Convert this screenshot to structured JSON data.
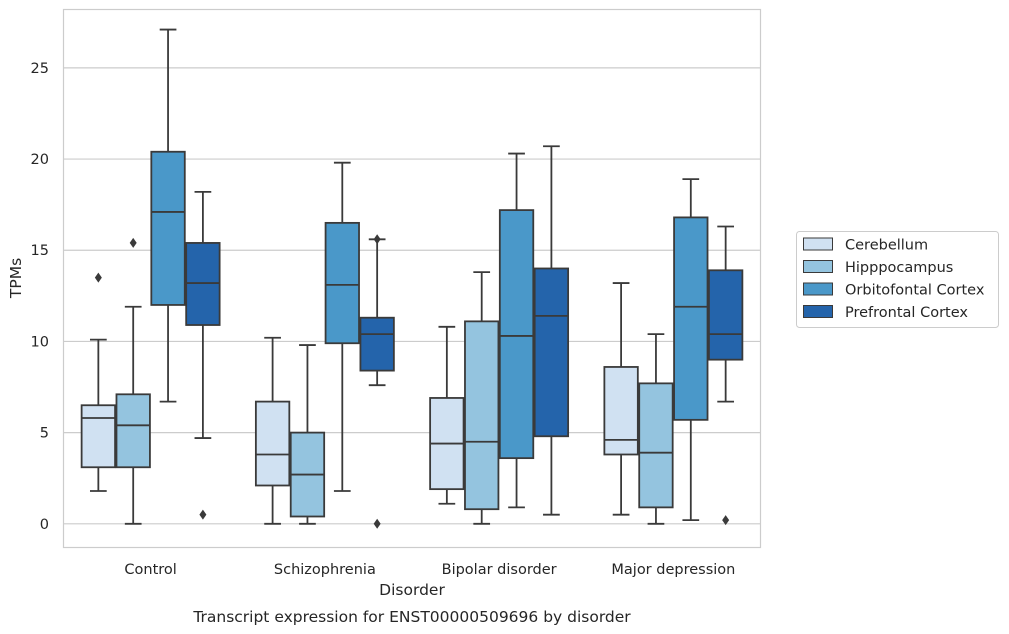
{
  "chart_data": {
    "type": "boxplot",
    "title": "Transcript expression for ENST00000509696 by disorder",
    "xlabel": "Disorder",
    "ylabel": "TPMs",
    "ylim": [
      -1.3,
      28.2
    ],
    "yticks": [
      0,
      5,
      10,
      15,
      20,
      25
    ],
    "grid": "horizontal",
    "legend_position": "right",
    "categories": [
      "Control",
      "Schizophrenia",
      "Bipolar disorder",
      "Major depression"
    ],
    "series": [
      {
        "name": "Cerebellum",
        "color": "#d0e1f2",
        "boxes": [
          {
            "whislo": 1.8,
            "q1": 3.1,
            "med": 5.8,
            "q3": 6.5,
            "whishi": 10.1,
            "fliers": [
              13.5
            ]
          },
          {
            "whislo": 0.0,
            "q1": 2.1,
            "med": 3.8,
            "q3": 6.7,
            "whishi": 10.2,
            "fliers": []
          },
          {
            "whislo": 1.1,
            "q1": 1.9,
            "med": 4.4,
            "q3": 6.9,
            "whishi": 10.8,
            "fliers": []
          },
          {
            "whislo": 0.5,
            "q1": 3.8,
            "med": 4.6,
            "q3": 8.6,
            "whishi": 13.2,
            "fliers": []
          }
        ]
      },
      {
        "name": "Hipppocampus",
        "color": "#94c4df",
        "boxes": [
          {
            "whislo": 0.0,
            "q1": 3.1,
            "med": 5.4,
            "q3": 7.1,
            "whishi": 11.9,
            "fliers": [
              15.4
            ]
          },
          {
            "whislo": 0.0,
            "q1": 0.4,
            "med": 2.7,
            "q3": 5.0,
            "whishi": 9.8,
            "fliers": []
          },
          {
            "whislo": 0.0,
            "q1": 0.8,
            "med": 4.5,
            "q3": 11.1,
            "whishi": 13.8,
            "fliers": []
          },
          {
            "whislo": 0.0,
            "q1": 0.9,
            "med": 3.9,
            "q3": 7.7,
            "whishi": 10.4,
            "fliers": []
          }
        ]
      },
      {
        "name": "Orbitofontal Cortex",
        "color": "#4a98c9",
        "boxes": [
          {
            "whislo": 6.7,
            "q1": 12.0,
            "med": 17.1,
            "q3": 20.4,
            "whishi": 27.1,
            "fliers": []
          },
          {
            "whislo": 1.8,
            "q1": 9.9,
            "med": 13.1,
            "q3": 16.5,
            "whishi": 19.8,
            "fliers": []
          },
          {
            "whislo": 0.9,
            "q1": 3.6,
            "med": 10.3,
            "q3": 17.2,
            "whishi": 20.3,
            "fliers": []
          },
          {
            "whislo": 0.2,
            "q1": 5.7,
            "med": 11.9,
            "q3": 16.8,
            "whishi": 18.9,
            "fliers": []
          }
        ]
      },
      {
        "name": "Prefrontal Cortex",
        "color": "#2464ab",
        "boxes": [
          {
            "whislo": 4.7,
            "q1": 10.9,
            "med": 13.2,
            "q3": 15.4,
            "whishi": 18.2,
            "fliers": [
              0.5
            ]
          },
          {
            "whislo": 7.6,
            "q1": 8.4,
            "med": 10.4,
            "q3": 11.3,
            "whishi": 15.6,
            "fliers": [
              0.0,
              15.6
            ]
          },
          {
            "whislo": 0.5,
            "q1": 4.8,
            "med": 11.4,
            "q3": 14.0,
            "whishi": 20.7,
            "fliers": []
          },
          {
            "whislo": 6.7,
            "q1": 9.0,
            "med": 10.4,
            "q3": 13.9,
            "whishi": 16.3,
            "fliers": [
              0.2
            ]
          }
        ]
      }
    ]
  }
}
